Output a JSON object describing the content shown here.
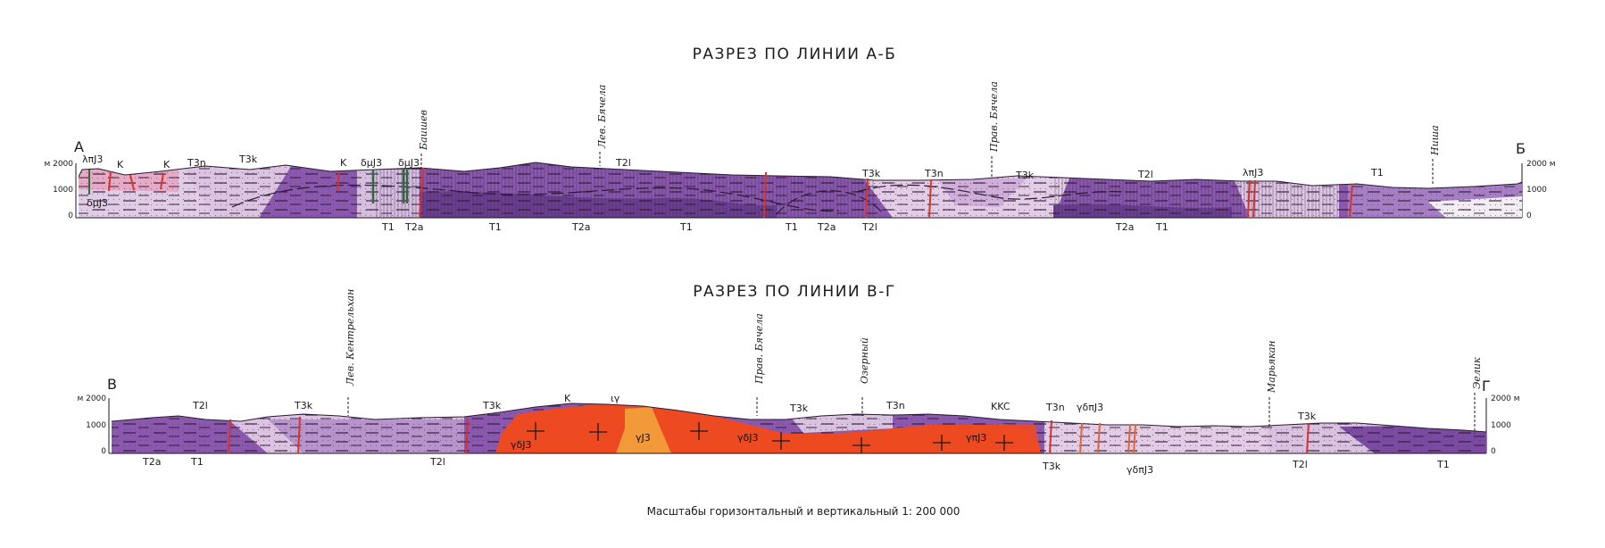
{
  "section_ab": {
    "title": "РАЗРЕЗ ПО ЛИНИИ А-Б",
    "start_label": "А",
    "end_label": "Б",
    "scale_left": [
      "м 2000",
      "1000",
      "0"
    ],
    "scale_right": [
      "2000 м",
      "1000",
      "0"
    ],
    "places": [
      "Баишев",
      "Лев. Бячела",
      "Прав. Бячела",
      "Ниша"
    ],
    "top_labels": [
      "λπJ3",
      "K",
      "K",
      "T3n",
      "T3k",
      "K",
      "δμJ3",
      "δμJ3",
      "T2l",
      "T3k",
      "T3n",
      "T3k",
      "T2l",
      "λπJ3",
      "T1"
    ],
    "bottom_labels": [
      "T1",
      "T2a",
      "T1",
      "T2a",
      "T1",
      "T1",
      "T2a",
      "T2l",
      "T2a",
      "T1"
    ],
    "inner_labels": [
      "δμJ3"
    ]
  },
  "section_vg": {
    "title": "РАЗРЕЗ ПО ЛИНИИ В-Г",
    "start_label": "В",
    "end_label": "Г",
    "scale_left": [
      "м 2000",
      "1000",
      "0"
    ],
    "scale_right": [
      "2000 м",
      "1000",
      "0"
    ],
    "places": [
      "Лев. Кентрельхан",
      "Прав. Бячела",
      "Озерный",
      "Марьякан",
      "Эелик"
    ],
    "top_labels": [
      "T2l",
      "T3k",
      "T3k",
      "K",
      "ιγ",
      "T3k",
      "T3n",
      "KKC",
      "T3n",
      "γδπJ3",
      "T3k"
    ],
    "bottom_labels": [
      "T2a",
      "T1",
      "T2l",
      "T3k",
      "γδπJ3",
      "T2l",
      "T1"
    ],
    "intrusion_labels": [
      "γδJ3",
      "γJ3",
      "γδJ3",
      "γπJ3"
    ]
  },
  "footer": {
    "scale_note": "Масштабы горизонтальный и вертикальный 1: 200 000"
  },
  "colors": {
    "dark_purple": "#7b4a9e",
    "mid_purple": "#9a6ab8",
    "pale_purple": "#d9c2df",
    "pink": "#e6a9c6",
    "light_violet": "#b894cc",
    "intrusion_red": "#ee4a22",
    "intrusion_orange": "#f29a3a",
    "fault_red": "#d6332a",
    "dyke_green": "#2f6a3a"
  }
}
